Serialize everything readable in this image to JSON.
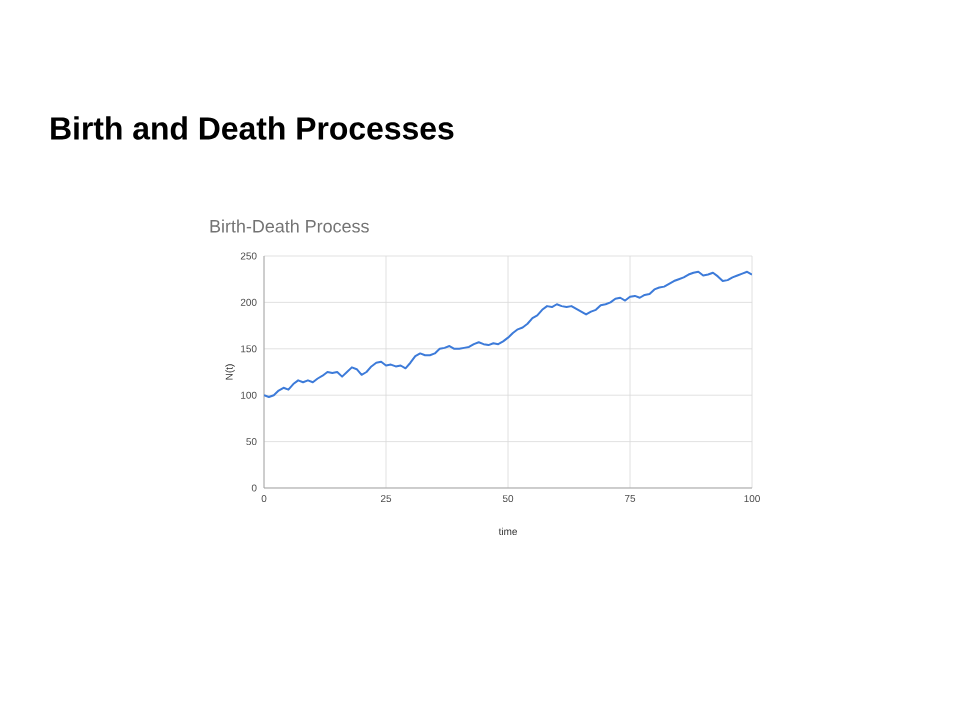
{
  "chart_data": {
    "type": "line",
    "title": "Birth and Death Processes",
    "subtitle": "Birth-Death Process",
    "xlabel": "time",
    "ylabel": "N(t)",
    "x": [
      0,
      1,
      2,
      3,
      4,
      5,
      6,
      7,
      8,
      9,
      10,
      11,
      12,
      13,
      14,
      15,
      16,
      17,
      18,
      19,
      20,
      21,
      22,
      23,
      24,
      25,
      26,
      27,
      28,
      29,
      30,
      31,
      32,
      33,
      34,
      35,
      36,
      37,
      38,
      39,
      40,
      41,
      42,
      43,
      44,
      45,
      46,
      47,
      48,
      49,
      50,
      51,
      52,
      53,
      54,
      55,
      56,
      57,
      58,
      59,
      60,
      61,
      62,
      63,
      64,
      65,
      66,
      67,
      68,
      69,
      70,
      71,
      72,
      73,
      74,
      75,
      76,
      77,
      78,
      79,
      80,
      81,
      82,
      83,
      84,
      85,
      86,
      87,
      88,
      89,
      90,
      91,
      92,
      93,
      94,
      95,
      96,
      97,
      98,
      99,
      100
    ],
    "series": [
      {
        "color": "#3d7bd9",
        "values": [
          100,
          98,
          100,
          105,
          108,
          106,
          112,
          116,
          114,
          116,
          114,
          118,
          121,
          125,
          124,
          125,
          120,
          125,
          130,
          128,
          122,
          125,
          131,
          135,
          136,
          132,
          133,
          131,
          132,
          129,
          135,
          142,
          145,
          143,
          143,
          145,
          150,
          151,
          153,
          150,
          150,
          151,
          152,
          155,
          157,
          155,
          154,
          156,
          155,
          158,
          162,
          167,
          171,
          173,
          177,
          183,
          186,
          192,
          196,
          195,
          198,
          196,
          195,
          196,
          193,
          190,
          187,
          190,
          192,
          197,
          198,
          200,
          204,
          205,
          202,
          206,
          207,
          205,
          208,
          209,
          214,
          216,
          217,
          220,
          223,
          225,
          227,
          230,
          232,
          233,
          229,
          230,
          232,
          228,
          223,
          224,
          227,
          229,
          231,
          233,
          230
        ]
      }
    ],
    "xlim": [
      0,
      100
    ],
    "ylim": [
      0,
      250
    ],
    "xticks": [
      0,
      25,
      50,
      75,
      100
    ],
    "yticks": [
      0,
      50,
      100,
      150,
      200,
      250
    ],
    "grid": true
  }
}
